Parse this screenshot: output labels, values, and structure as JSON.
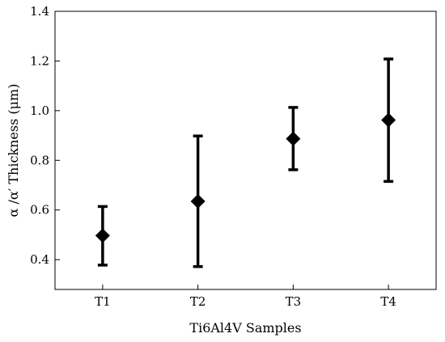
{
  "chart_data": {
    "type": "scatter",
    "title": "",
    "xlabel": "Ti6Al4V Samples",
    "ylabel": "α /α′ Thickness (μm)",
    "categories": [
      "T1",
      "T2",
      "T3",
      "T4"
    ],
    "values": [
      0.497,
      0.635,
      0.887,
      0.962
    ],
    "error_low": [
      0.378,
      0.372,
      0.762,
      0.715
    ],
    "error_high": [
      0.614,
      0.898,
      1.013,
      1.208
    ],
    "ylim": [
      0.28,
      1.4
    ],
    "yticks": [
      0.4,
      0.6,
      0.8,
      1.0,
      1.2,
      1.4
    ],
    "ytick_labels": [
      "0.4",
      "0.6",
      "0.8",
      "1.0",
      "1.2",
      "1.4"
    ],
    "grid": false,
    "marker": "diamond",
    "color": "#000000"
  }
}
